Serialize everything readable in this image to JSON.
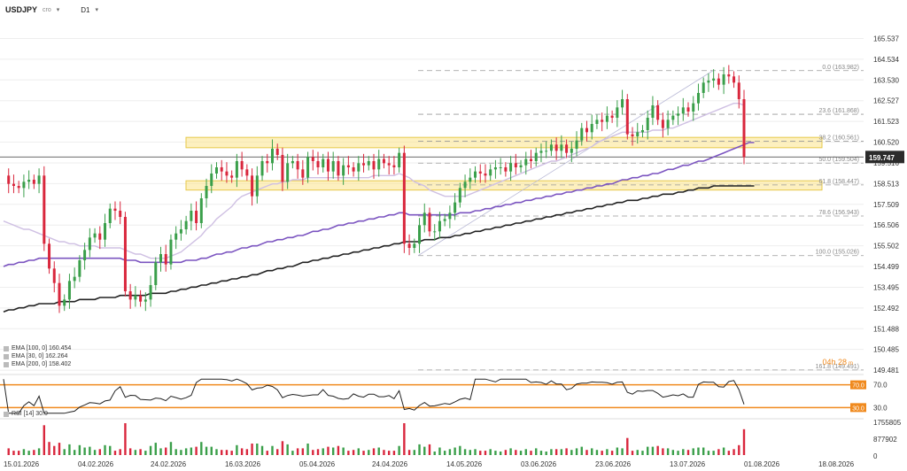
{
  "toolbar": {
    "symbol": "USDJPY",
    "symbol_sub": "cro",
    "timeframe": "D1"
  },
  "colors": {
    "bull": "#3a9f4a",
    "bear": "#d9273d",
    "ema30": "#cfc0e3",
    "ema100": "#7b54c0",
    "ema200": "#222222",
    "zone": "#fbe48a",
    "zone_border": "#e6c84a",
    "rsi_band": "#f08a1e",
    "price_tag": "#2b2b2b"
  },
  "indicators": {
    "ema100": "EMA [100, 0] 160.454",
    "ema30": "EMA [30, 0] 162.264",
    "ema200": "EMA [200, 0] 158.402",
    "rsi": "RSI [14] 30.0",
    "countdown_main": "04h 28",
    "countdown_sub": "m"
  },
  "price_tag": "159.747",
  "chart_data": {
    "type": "candlestick",
    "y_ticks": [
      "165.537",
      "164.534",
      "163.530",
      "162.527",
      "161.523",
      "160.520",
      "159.516",
      "158.513",
      "157.509",
      "156.506",
      "155.502",
      "154.499",
      "153.495",
      "152.492",
      "151.488",
      "150.485",
      "149.481"
    ],
    "ylim": [
      149.4,
      165.9
    ],
    "x_ticks": [
      "15.01.2026",
      "04.02.2026",
      "24.02.2026",
      "16.03.2026",
      "05.04.2026",
      "24.04.2026",
      "14.05.2026",
      "03.06.2026",
      "23.06.2026",
      "13.07.2026",
      "01.08.2026",
      "18.08.2026"
    ],
    "fib_levels": [
      {
        "label": "0.0 (163.982)",
        "value": 163.982
      },
      {
        "label": "23.6 (161.868)",
        "value": 161.868
      },
      {
        "label": "38.2 (160.561)",
        "value": 160.561
      },
      {
        "label": "50.0 (159.504)",
        "value": 159.504
      },
      {
        "label": "61.8 (158.447)",
        "value": 158.447
      },
      {
        "label": "78.6 (156.943)",
        "value": 156.943
      },
      {
        "label": "100.0 (155.026)",
        "value": 155.026
      },
      {
        "label": "161.8 (149.491)",
        "value": 149.491
      }
    ],
    "zones": [
      {
        "low": 160.25,
        "high": 160.75
      },
      {
        "low": 158.2,
        "high": 158.65
      }
    ],
    "rsi": {
      "levels": [
        {
          "label": "70.0",
          "value": 70
        },
        {
          "label": "30.0",
          "value": 30
        }
      ],
      "ticks": [
        "70.0",
        "30.0"
      ]
    },
    "volume": {
      "ticks": [
        "1755805",
        "877902",
        "0"
      ]
    },
    "closes": [
      158.9,
      158.5,
      158.4,
      158.3,
      158.6,
      158.7,
      158.5,
      158.9,
      155.6,
      154.4,
      153.7,
      152.6,
      152.9,
      153.8,
      154.0,
      154.8,
      155.3,
      155.9,
      156.1,
      155.8,
      156.6,
      157.3,
      157.2,
      156.9,
      153.3,
      152.9,
      153.1,
      152.8,
      152.9,
      153.6,
      154.7,
      155.1,
      154.6,
      155.8,
      156.1,
      156.3,
      156.7,
      157.2,
      156.6,
      157.8,
      158.4,
      159.0,
      159.3,
      159.1,
      158.9,
      158.8,
      159.6,
      159.2,
      158.9,
      157.9,
      158.9,
      159.6,
      159.5,
      160.2,
      159.9,
      158.6,
      159.5,
      159.6,
      159.2,
      158.8,
      159.8,
      159.6,
      159.3,
      159.7,
      159.1,
      159.6,
      158.9,
      159.4,
      159.3,
      159.1,
      159.5,
      159.4,
      159.6,
      159.2,
      159.7,
      159.5,
      159.4,
      159.3,
      160.0,
      155.6,
      155.4,
      155.6,
      156.5,
      157.1,
      156.2,
      156.2,
      156.7,
      156.8,
      157.1,
      157.6,
      158.3,
      158.6,
      158.8,
      159.1,
      159.0,
      158.9,
      159.2,
      159.3,
      159.3,
      159.1,
      159.5,
      159.3,
      159.4,
      159.7,
      159.6,
      160.0,
      160.1,
      160.1,
      160.4,
      160.1,
      160.4,
      160.0,
      160.2,
      160.6,
      161.2,
      161.0,
      161.4,
      161.6,
      161.5,
      161.8,
      161.7,
      162.2,
      162.6,
      160.9,
      160.8,
      161.0,
      161.1,
      161.7,
      162.3,
      161.6,
      161.2,
      161.6,
      161.8,
      161.9,
      162.2,
      162.0,
      162.4,
      162.9,
      163.4,
      163.5,
      163.6,
      163.3,
      163.8,
      163.7,
      163.4,
      162.6,
      159.8
    ],
    "ema30_values": [
      156.7,
      156.6,
      156.5,
      156.4,
      156.3,
      156.3,
      156.2,
      156.1,
      156.0,
      155.9,
      155.8,
      155.7,
      155.7,
      155.6,
      155.6,
      155.5,
      155.5,
      155.5,
      155.5,
      155.4,
      155.4,
      155.4,
      155.4,
      155.4,
      155.3,
      155.2,
      155.1,
      155.1,
      155.0,
      154.9,
      154.9,
      154.9,
      154.9,
      155.0,
      155.1,
      155.2,
      155.4,
      155.6,
      155.8,
      156.0,
      156.3,
      156.5,
      156.8,
      157.0,
      157.2,
      157.4,
      157.7,
      157.9,
      158.0,
      158.1,
      158.2,
      158.3,
      158.4,
      158.5,
      158.5,
      158.6,
      158.6,
      158.7,
      158.7,
      158.7,
      158.8,
      158.8,
      158.8,
      158.8,
      158.8,
      158.8,
      158.8,
      158.8,
      158.8,
      158.8,
      158.8,
      158.8,
      158.8,
      158.9,
      158.9,
      158.9,
      158.9,
      158.9,
      159.0,
      158.9,
      158.8,
      158.6,
      158.5,
      158.4,
      158.2,
      158.1,
      158.0,
      157.9,
      157.9,
      157.9,
      157.9,
      157.9,
      158.0,
      158.1,
      158.2,
      158.3,
      158.4,
      158.5,
      158.6,
      158.7,
      158.8,
      158.9,
      159.0,
      159.1,
      159.2,
      159.3,
      159.4,
      159.5,
      159.6,
      159.6,
      159.7,
      159.8,
      159.9,
      160.0,
      160.1,
      160.2,
      160.3,
      160.5,
      160.6,
      160.7,
      160.8,
      160.9,
      161.0,
      161.0,
      161.0,
      161.0,
      161.0,
      161.0,
      161.1,
      161.1,
      161.1,
      161.2,
      161.2,
      161.3,
      161.4,
      161.5,
      161.6,
      161.7,
      161.8,
      161.9,
      162.0,
      162.1,
      162.2,
      162.3,
      162.4,
      162.4,
      162.3
    ],
    "ema100_values": [
      154.5,
      154.6,
      154.6,
      154.7,
      154.7,
      154.8,
      154.8,
      154.9,
      154.9,
      154.9,
      154.9,
      154.9,
      154.9,
      154.9,
      154.9,
      154.9,
      154.9,
      154.9,
      154.9,
      154.9,
      154.9,
      154.9,
      154.9,
      154.9,
      154.8,
      154.8,
      154.8,
      154.7,
      154.7,
      154.7,
      154.7,
      154.7,
      154.7,
      154.7,
      154.7,
      154.7,
      154.8,
      154.8,
      154.8,
      154.9,
      154.9,
      155.0,
      155.1,
      155.1,
      155.2,
      155.2,
      155.3,
      155.4,
      155.4,
      155.5,
      155.5,
      155.6,
      155.7,
      155.7,
      155.8,
      155.8,
      155.9,
      155.9,
      156.0,
      156.0,
      156.1,
      156.2,
      156.2,
      156.3,
      156.3,
      156.4,
      156.5,
      156.5,
      156.6,
      156.6,
      156.7,
      156.7,
      156.8,
      156.8,
      156.9,
      156.9,
      157.0,
      157.0,
      157.1,
      157.1,
      157.0,
      157.0,
      157.0,
      157.0,
      157.0,
      157.0,
      157.0,
      157.0,
      157.0,
      157.0,
      157.1,
      157.1,
      157.1,
      157.2,
      157.2,
      157.3,
      157.3,
      157.4,
      157.4,
      157.5,
      157.5,
      157.6,
      157.6,
      157.7,
      157.7,
      157.8,
      157.8,
      157.9,
      157.9,
      158.0,
      158.0,
      158.1,
      158.1,
      158.2,
      158.2,
      158.3,
      158.3,
      158.4,
      158.4,
      158.5,
      158.5,
      158.6,
      158.7,
      158.7,
      158.8,
      158.8,
      158.9,
      158.9,
      159.0,
      159.0,
      159.1,
      159.2,
      159.2,
      159.3,
      159.4,
      159.4,
      159.5,
      159.6,
      159.6,
      159.7,
      159.8,
      159.9,
      160.0,
      160.1,
      160.2,
      160.3,
      160.4,
      160.5,
      160.5
    ],
    "ema200_values": [
      152.3,
      152.4,
      152.4,
      152.5,
      152.5,
      152.6,
      152.6,
      152.7,
      152.7,
      152.7,
      152.7,
      152.8,
      152.8,
      152.8,
      152.8,
      152.9,
      152.9,
      152.9,
      152.9,
      153.0,
      153.0,
      153.0,
      153.0,
      153.1,
      153.1,
      153.1,
      153.1,
      153.1,
      153.1,
      153.2,
      153.2,
      153.2,
      153.2,
      153.3,
      153.3,
      153.4,
      153.4,
      153.5,
      153.5,
      153.6,
      153.6,
      153.7,
      153.7,
      153.8,
      153.8,
      153.9,
      153.9,
      154.0,
      154.0,
      154.1,
      154.1,
      154.2,
      154.3,
      154.3,
      154.4,
      154.4,
      154.5,
      154.5,
      154.6,
      154.7,
      154.7,
      154.8,
      154.8,
      154.9,
      154.9,
      155.0,
      155.0,
      155.1,
      155.1,
      155.2,
      155.2,
      155.3,
      155.3,
      155.4,
      155.4,
      155.5,
      155.5,
      155.6,
      155.6,
      155.7,
      155.7,
      155.7,
      155.7,
      155.8,
      155.8,
      155.8,
      155.9,
      155.9,
      155.9,
      156.0,
      156.0,
      156.1,
      156.1,
      156.2,
      156.2,
      156.3,
      156.3,
      156.4,
      156.4,
      156.5,
      156.5,
      156.6,
      156.6,
      156.7,
      156.7,
      156.8,
      156.8,
      156.9,
      156.9,
      157.0,
      157.0,
      157.1,
      157.1,
      157.2,
      157.2,
      157.3,
      157.3,
      157.4,
      157.4,
      157.5,
      157.5,
      157.6,
      157.6,
      157.7,
      157.7,
      157.7,
      157.8,
      157.8,
      157.9,
      157.9,
      158.0,
      158.0,
      158.0,
      158.1,
      158.1,
      158.2,
      158.2,
      158.3,
      158.3,
      158.3,
      158.4,
      158.4,
      158.4,
      158.4,
      158.4,
      158.4,
      158.4,
      158.4,
      158.4
    ]
  }
}
